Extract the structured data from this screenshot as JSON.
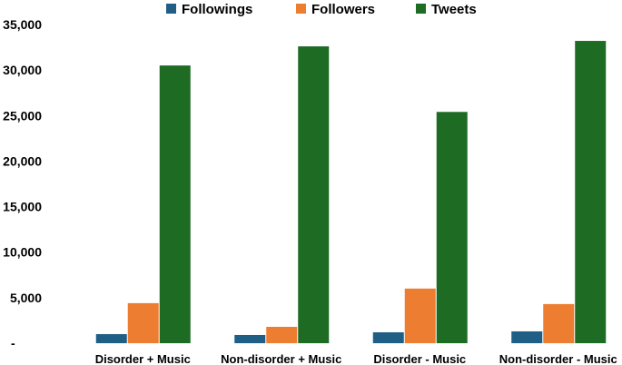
{
  "chart_data": {
    "type": "bar",
    "categories": [
      "Disorder + Music",
      "Non-disorder + Music",
      "Disorder - Music",
      "Non-disorder - Music"
    ],
    "series": [
      {
        "name": "Followings",
        "color": "#1F5F86",
        "values": [
          1000,
          900,
          1200,
          1300
        ]
      },
      {
        "name": "Followers",
        "color": "#ED7D31",
        "values": [
          4400,
          1800,
          6000,
          4300
        ]
      },
      {
        "name": "Tweets",
        "color": "#1E6B24",
        "values": [
          30500,
          32600,
          25400,
          33200
        ]
      }
    ],
    "ylim": [
      0,
      35000
    ],
    "yticks": [
      0,
      5000,
      10000,
      15000,
      20000,
      25000,
      30000,
      35000
    ],
    "ytick_labels": [
      "-",
      "5,000",
      "10,000",
      "15,000",
      "20,000",
      "25,000",
      "30,000",
      "35,000"
    ],
    "legend_position": "top-center",
    "grid": false
  }
}
